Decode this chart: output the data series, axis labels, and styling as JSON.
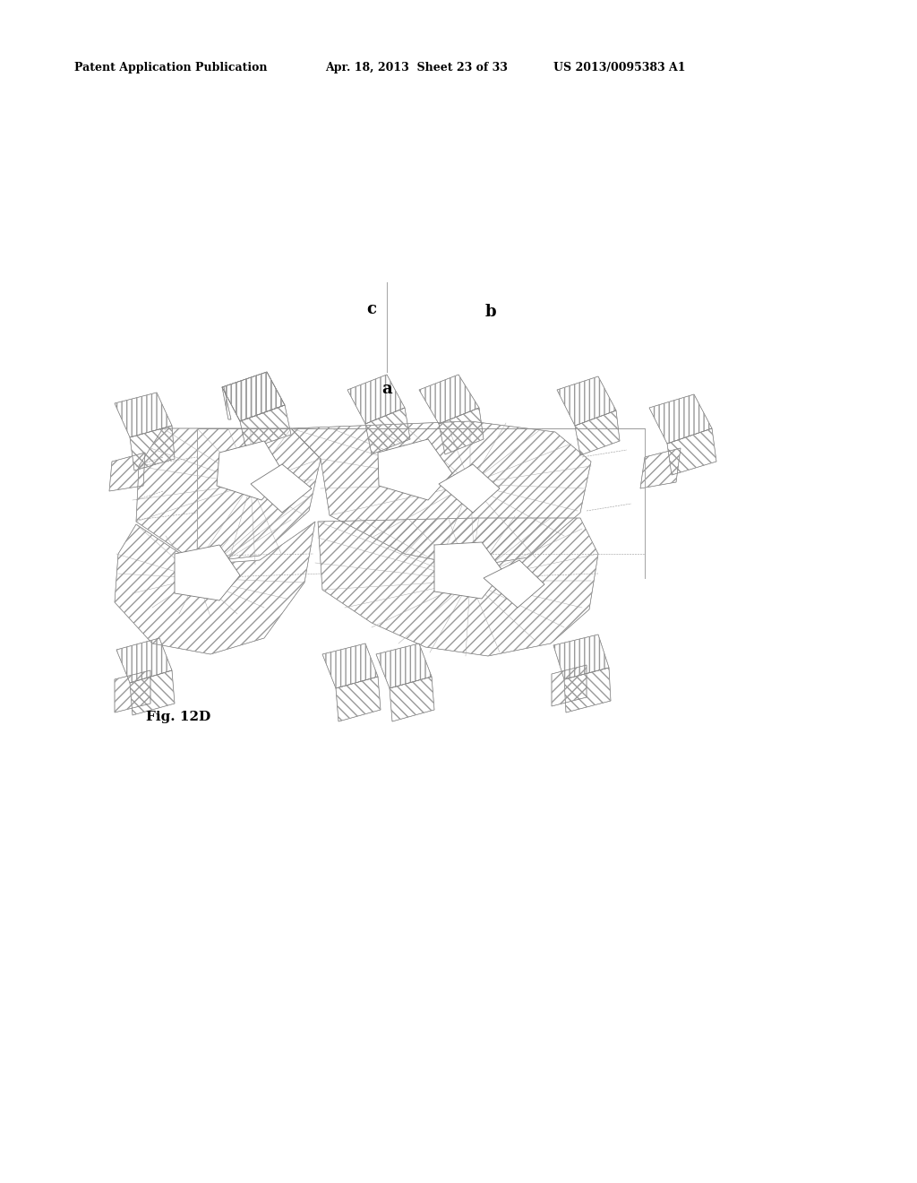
{
  "header_left": "Patent Application Publication",
  "header_mid": "Apr. 18, 2013  Sheet 23 of 33",
  "header_right": "US 2013/0095383 A1",
  "fig_caption": "Fig. 12D",
  "bg_color": "#ffffff",
  "ec": "#777777",
  "lw_edge": 0.5,
  "lw_thick": 0.7
}
